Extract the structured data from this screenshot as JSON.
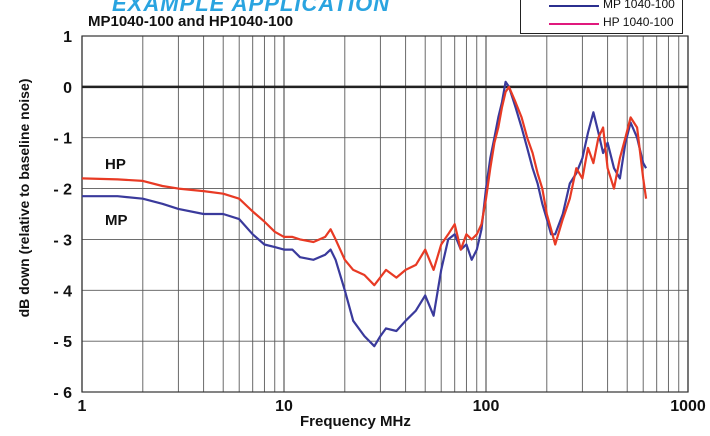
{
  "header": {
    "title": "EXAMPLE APPLICATION",
    "subtitle": "MP1040-100 and HP1040-100"
  },
  "legend": {
    "entries": [
      {
        "label": "MP 1040-100",
        "color": "#2b2f8f"
      },
      {
        "label": "HP 1040-100",
        "color": "#e0197d"
      }
    ]
  },
  "colors": {
    "mp_series": "#3a3a9c",
    "hp_series": "#e83a24",
    "zero_line": "#222222",
    "grid": "#5a5a5a",
    "background": "#ffffff"
  },
  "chart_data": {
    "type": "line",
    "title": "MP1040-100 and HP1040-100",
    "xlabel": "Frequency MHz",
    "ylabel": "dB down  (relative to baseline noise)",
    "x_scale": "log",
    "xlim": [
      1,
      1000
    ],
    "ylim": [
      -6,
      1
    ],
    "x_ticks": [
      1,
      10,
      100,
      1000
    ],
    "x_tick_labels": [
      "1",
      "10",
      "100",
      "1000"
    ],
    "y_ticks": [
      1,
      0,
      -1,
      -2,
      -3,
      -4,
      -5,
      -6
    ],
    "y_tick_labels": [
      "1",
      "0",
      "- 1",
      "- 2",
      "- 3",
      "- 4",
      "- 5",
      "- 6"
    ],
    "grid": true,
    "legend_position": "top-right",
    "annotations": [
      {
        "text": "HP",
        "x": 1.3,
        "y": -1.5
      },
      {
        "text": "MP",
        "x": 1.3,
        "y": -2.6
      }
    ],
    "series": [
      {
        "name": "HP 1040-100",
        "color": "#e83a24",
        "points": [
          [
            1,
            -1.8
          ],
          [
            1.5,
            -1.82
          ],
          [
            2,
            -1.85
          ],
          [
            2.5,
            -1.95
          ],
          [
            3,
            -2.0
          ],
          [
            4,
            -2.05
          ],
          [
            5,
            -2.1
          ],
          [
            6,
            -2.2
          ],
          [
            7,
            -2.45
          ],
          [
            8,
            -2.65
          ],
          [
            9,
            -2.85
          ],
          [
            10,
            -2.95
          ],
          [
            11,
            -2.95
          ],
          [
            12,
            -3.0
          ],
          [
            14,
            -3.05
          ],
          [
            16,
            -2.95
          ],
          [
            17,
            -2.8
          ],
          [
            18,
            -3.0
          ],
          [
            20,
            -3.4
          ],
          [
            22,
            -3.6
          ],
          [
            25,
            -3.7
          ],
          [
            28,
            -3.9
          ],
          [
            32,
            -3.6
          ],
          [
            36,
            -3.75
          ],
          [
            40,
            -3.6
          ],
          [
            45,
            -3.5
          ],
          [
            50,
            -3.2
          ],
          [
            55,
            -3.6
          ],
          [
            60,
            -3.1
          ],
          [
            65,
            -2.9
          ],
          [
            70,
            -2.7
          ],
          [
            75,
            -3.2
          ],
          [
            80,
            -2.9
          ],
          [
            85,
            -3.0
          ],
          [
            90,
            -2.9
          ],
          [
            95,
            -2.7
          ],
          [
            100,
            -2.2
          ],
          [
            105,
            -1.6
          ],
          [
            110,
            -1.1
          ],
          [
            115,
            -0.8
          ],
          [
            120,
            -0.4
          ],
          [
            125,
            -0.1
          ],
          [
            130,
            0.0
          ],
          [
            140,
            -0.3
          ],
          [
            150,
            -0.6
          ],
          [
            160,
            -1.0
          ],
          [
            170,
            -1.3
          ],
          [
            180,
            -1.7
          ],
          [
            190,
            -2.0
          ],
          [
            200,
            -2.5
          ],
          [
            210,
            -2.8
          ],
          [
            220,
            -3.1
          ],
          [
            240,
            -2.6
          ],
          [
            260,
            -2.2
          ],
          [
            280,
            -1.6
          ],
          [
            300,
            -1.8
          ],
          [
            320,
            -1.2
          ],
          [
            340,
            -1.5
          ],
          [
            360,
            -1.0
          ],
          [
            380,
            -0.8
          ],
          [
            400,
            -1.6
          ],
          [
            430,
            -2.0
          ],
          [
            460,
            -1.4
          ],
          [
            490,
            -1.0
          ],
          [
            520,
            -0.6
          ],
          [
            560,
            -0.8
          ],
          [
            600,
            -1.8
          ],
          [
            620,
            -2.2
          ]
        ]
      },
      {
        "name": "MP 1040-100",
        "color": "#3a3a9c",
        "points": [
          [
            1,
            -2.15
          ],
          [
            1.5,
            -2.15
          ],
          [
            2,
            -2.2
          ],
          [
            2.5,
            -2.3
          ],
          [
            3,
            -2.4
          ],
          [
            4,
            -2.5
          ],
          [
            5,
            -2.5
          ],
          [
            6,
            -2.6
          ],
          [
            7,
            -2.9
          ],
          [
            8,
            -3.1
          ],
          [
            9,
            -3.15
          ],
          [
            10,
            -3.2
          ],
          [
            11,
            -3.2
          ],
          [
            12,
            -3.35
          ],
          [
            14,
            -3.4
          ],
          [
            16,
            -3.3
          ],
          [
            17,
            -3.2
          ],
          [
            18,
            -3.4
          ],
          [
            20,
            -4.0
          ],
          [
            22,
            -4.6
          ],
          [
            25,
            -4.9
          ],
          [
            28,
            -5.1
          ],
          [
            30,
            -4.9
          ],
          [
            32,
            -4.75
          ],
          [
            36,
            -4.8
          ],
          [
            40,
            -4.6
          ],
          [
            45,
            -4.4
          ],
          [
            50,
            -4.1
          ],
          [
            55,
            -4.5
          ],
          [
            60,
            -3.6
          ],
          [
            65,
            -3.0
          ],
          [
            70,
            -2.9
          ],
          [
            75,
            -3.2
          ],
          [
            80,
            -3.1
          ],
          [
            85,
            -3.4
          ],
          [
            90,
            -3.2
          ],
          [
            95,
            -2.8
          ],
          [
            100,
            -2.0
          ],
          [
            105,
            -1.4
          ],
          [
            110,
            -1.0
          ],
          [
            115,
            -0.6
          ],
          [
            120,
            -0.3
          ],
          [
            125,
            0.1
          ],
          [
            130,
            0.0
          ],
          [
            140,
            -0.4
          ],
          [
            150,
            -0.8
          ],
          [
            160,
            -1.2
          ],
          [
            170,
            -1.6
          ],
          [
            180,
            -1.9
          ],
          [
            190,
            -2.3
          ],
          [
            200,
            -2.6
          ],
          [
            210,
            -2.9
          ],
          [
            220,
            -2.9
          ],
          [
            240,
            -2.5
          ],
          [
            260,
            -1.9
          ],
          [
            280,
            -1.7
          ],
          [
            300,
            -1.4
          ],
          [
            320,
            -0.9
          ],
          [
            340,
            -0.5
          ],
          [
            360,
            -0.9
          ],
          [
            380,
            -1.3
          ],
          [
            400,
            -1.1
          ],
          [
            430,
            -1.6
          ],
          [
            460,
            -1.8
          ],
          [
            490,
            -1.1
          ],
          [
            520,
            -0.7
          ],
          [
            560,
            -1.0
          ],
          [
            600,
            -1.5
          ],
          [
            620,
            -1.6
          ]
        ]
      }
    ]
  }
}
